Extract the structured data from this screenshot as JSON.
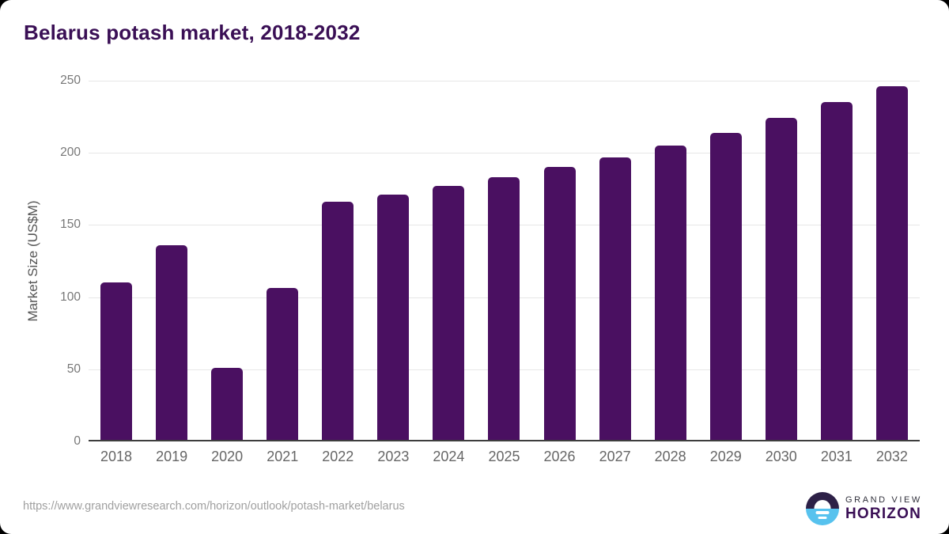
{
  "page": {
    "title": "Belarus potash market, 2018-2032",
    "source_url": "https://www.grandviewresearch.com/horizon/outlook/potash-market/belarus",
    "logo": {
      "line1": "GRAND VIEW",
      "line2": "HORIZON"
    }
  },
  "chart_data": {
    "type": "bar",
    "title": "Belarus potash market, 2018-2032",
    "categories": [
      "2018",
      "2019",
      "2020",
      "2021",
      "2022",
      "2023",
      "2024",
      "2025",
      "2026",
      "2027",
      "2028",
      "2029",
      "2030",
      "2031",
      "2032"
    ],
    "values": [
      109,
      135,
      50,
      105,
      165,
      170,
      176,
      182,
      189,
      196,
      204,
      213,
      223,
      234,
      245
    ],
    "xlabel": "",
    "ylabel": "Market Size (US$M)",
    "ylim": [
      0,
      250
    ],
    "yticks": [
      0,
      50,
      100,
      150,
      200,
      250
    ],
    "grid": "horizontal-only",
    "legend": "none",
    "bar_color": "#4a1061"
  },
  "colors": {
    "title": "#3a0f55",
    "bar": "#4a1061",
    "gridline": "#e7e7e7",
    "axis_line": "#3d3d3d",
    "tick_label": "#777777",
    "x_label": "#666666",
    "axis_title": "#555555",
    "source_url": "#a0a0a0",
    "logo_dark": "#2d2047",
    "logo_blue": "#57c2ee"
  }
}
